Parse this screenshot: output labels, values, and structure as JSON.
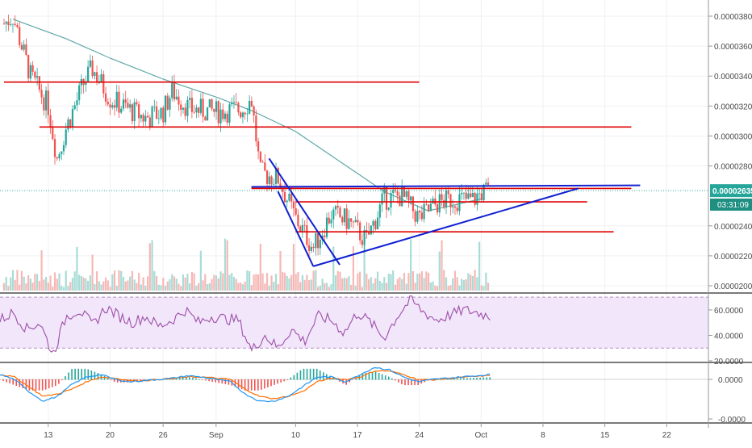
{
  "chart_data": [
    {
      "type": "candlestick",
      "pane": "price",
      "title": "",
      "y_scale": "linear",
      "ylim": [
        1.95e-05,
        3.9e-05
      ],
      "y_ticks": [
        "0.00003800",
        "0.00003600",
        "0.00003400",
        "0.00003200",
        "0.00003000",
        "0.00002800",
        "0.00002400",
        "0.00002200",
        "0.00002000"
      ],
      "x_ticks": [
        "13",
        "20",
        "26",
        "Sep",
        "10",
        "17",
        "24",
        "Oct",
        "8",
        "15",
        "22"
      ],
      "current_price_label": "0.00002635",
      "countdown_label": "03:31:09",
      "colors": {
        "up": "#26a69a",
        "down": "#ef5350",
        "moving_average": "#5fa8a8",
        "drawing_red": "#e00000",
        "drawing_blue": "#1020d0",
        "last_price": "#26a69a"
      },
      "moving_average_path": [
        [
          "2018-08-09",
          3.78e-05
        ],
        [
          "2018-08-15",
          3.65e-05
        ],
        [
          "2018-08-20",
          3.52e-05
        ],
        [
          "2018-08-26",
          3.38e-05
        ],
        [
          "2018-09-01",
          3.26e-05
        ],
        [
          "2018-09-05",
          3.17e-05
        ],
        [
          "2018-09-10",
          3.03e-05
        ],
        [
          "2018-09-15",
          2.83e-05
        ],
        [
          "2018-09-20",
          2.63e-05
        ],
        [
          "2018-09-25",
          2.5e-05
        ],
        [
          "2018-10-01",
          2.58e-05
        ]
      ],
      "price_path": [
        [
          "2018-08-08",
          3.75e-05
        ],
        [
          "2018-08-09",
          3.8e-05
        ],
        [
          "2018-08-11",
          3.4e-05
        ],
        [
          "2018-08-13",
          3.2e-05
        ],
        [
          "2018-08-14",
          2.85e-05
        ],
        [
          "2018-08-15",
          3.05e-05
        ],
        [
          "2018-08-17",
          3.35e-05
        ],
        [
          "2018-08-18",
          3.45e-05
        ],
        [
          "2018-08-20",
          3.25e-05
        ],
        [
          "2018-08-22",
          3.18e-05
        ],
        [
          "2018-08-24",
          3.12e-05
        ],
        [
          "2018-08-26",
          3.16e-05
        ],
        [
          "2018-08-27",
          3.3e-05
        ],
        [
          "2018-08-29",
          3.18e-05
        ],
        [
          "2018-09-01",
          3.16e-05
        ],
        [
          "2018-09-04",
          3.18e-05
        ],
        [
          "2018-09-05",
          3.25e-05
        ],
        [
          "2018-09-06",
          2.75e-05
        ],
        [
          "2018-09-08",
          2.72e-05
        ],
        [
          "2018-09-10",
          2.45e-05
        ],
        [
          "2018-09-12",
          2.25e-05
        ],
        [
          "2018-09-14",
          2.48e-05
        ],
        [
          "2018-09-16",
          2.43e-05
        ],
        [
          "2018-09-18",
          2.3e-05
        ],
        [
          "2018-09-20",
          2.58e-05
        ],
        [
          "2018-09-22",
          2.6e-05
        ],
        [
          "2018-09-24",
          2.45e-05
        ],
        [
          "2018-09-26",
          2.55e-05
        ],
        [
          "2018-09-28",
          2.58e-05
        ],
        [
          "2018-09-30",
          2.57e-05
        ],
        [
          "2018-10-01",
          2.62e-05
        ],
        [
          "2018-10-02",
          2.635e-05
        ]
      ],
      "horizontal_levels": [
        {
          "price": 3.36e-05,
          "from": "2018-08-08",
          "to": "2018-09-24",
          "color": "red"
        },
        {
          "price": 3.06e-05,
          "from": "2018-08-12",
          "to": "2018-10-18",
          "color": "red"
        },
        {
          "price": 2.65e-05,
          "from": "2018-09-05",
          "to": "2018-10-18",
          "color": "red"
        },
        {
          "price": 2.56e-05,
          "from": "2018-09-10",
          "to": "2018-10-13",
          "color": "red"
        },
        {
          "price": 2.36e-05,
          "from": "2018-09-10",
          "to": "2018-10-16",
          "color": "red"
        }
      ],
      "trend_lines": [
        {
          "from": [
            "2018-09-05",
            2.66e-05
          ],
          "to": [
            "2018-10-19",
            2.67e-05
          ],
          "color": "blue"
        },
        {
          "from": [
            "2018-09-07",
            2.85e-05
          ],
          "to": [
            "2018-09-15",
            2.14e-05
          ],
          "color": "blue"
        },
        {
          "from": [
            "2018-09-08",
            2.63e-05
          ],
          "to": [
            "2018-09-12",
            2.13e-05
          ],
          "color": "blue"
        },
        {
          "from": [
            "2018-09-12",
            2.13e-05
          ],
          "to": [
            "2018-10-12",
            2.65e-05
          ],
          "color": "blue"
        }
      ]
    },
    {
      "type": "line",
      "pane": "rsi",
      "ylim": [
        20,
        72
      ],
      "y_ticks": [
        "60.0000",
        "40.0000",
        "20.0000"
      ],
      "band": [
        30,
        70
      ],
      "colors": {
        "line": "#9c4fa8",
        "band_fill": "#f2e6fa",
        "band_border": "#b48ec0"
      },
      "series": [
        {
          "values": [
            52,
            58,
            45,
            50,
            25,
            55,
            60,
            48,
            62,
            55,
            50,
            55,
            47,
            52,
            60,
            50,
            55,
            53,
            52,
            28,
            40,
            30,
            45,
            35,
            55,
            52,
            42,
            58,
            50,
            38,
            55,
            68,
            58,
            52,
            56,
            60,
            58,
            55
          ]
        }
      ]
    },
    {
      "type": "line",
      "pane": "macd",
      "y_ticks": [
        "0.0000",
        "-0.0000"
      ],
      "colors": {
        "macd": "#2196f3",
        "signal": "#ff6d00",
        "hist_up": "#26a69a",
        "hist_down": "#ef5350"
      },
      "series": [
        {
          "values": [
            0.2,
            0.0,
            -0.5,
            -0.9,
            -0.7,
            -0.2,
            0.1,
            0.2,
            0.0,
            -0.1,
            -0.05,
            0.0,
            0.05,
            0.15,
            0.1,
            0.0,
            -0.1,
            -0.6,
            -0.9,
            -0.9,
            -0.7,
            -0.3,
            0.1,
            0.1,
            -0.1,
            0.2,
            0.5,
            0.4,
            0.1,
            -0.1,
            0.0,
            0.05,
            0.1,
            0.15,
            0.2
          ]
        },
        {
          "values": [
            0.2,
            0.1,
            -0.3,
            -0.7,
            -0.6,
            -0.4,
            -0.1,
            0.1,
            0.05,
            -0.05,
            -0.05,
            0.0,
            0.03,
            0.1,
            0.1,
            0.05,
            0.0,
            -0.4,
            -0.7,
            -0.8,
            -0.7,
            -0.5,
            -0.1,
            0.05,
            0.0,
            0.1,
            0.35,
            0.35,
            0.2,
            0.0,
            -0.02,
            0.03,
            0.08,
            0.12,
            0.16
          ]
        }
      ]
    }
  ]
}
